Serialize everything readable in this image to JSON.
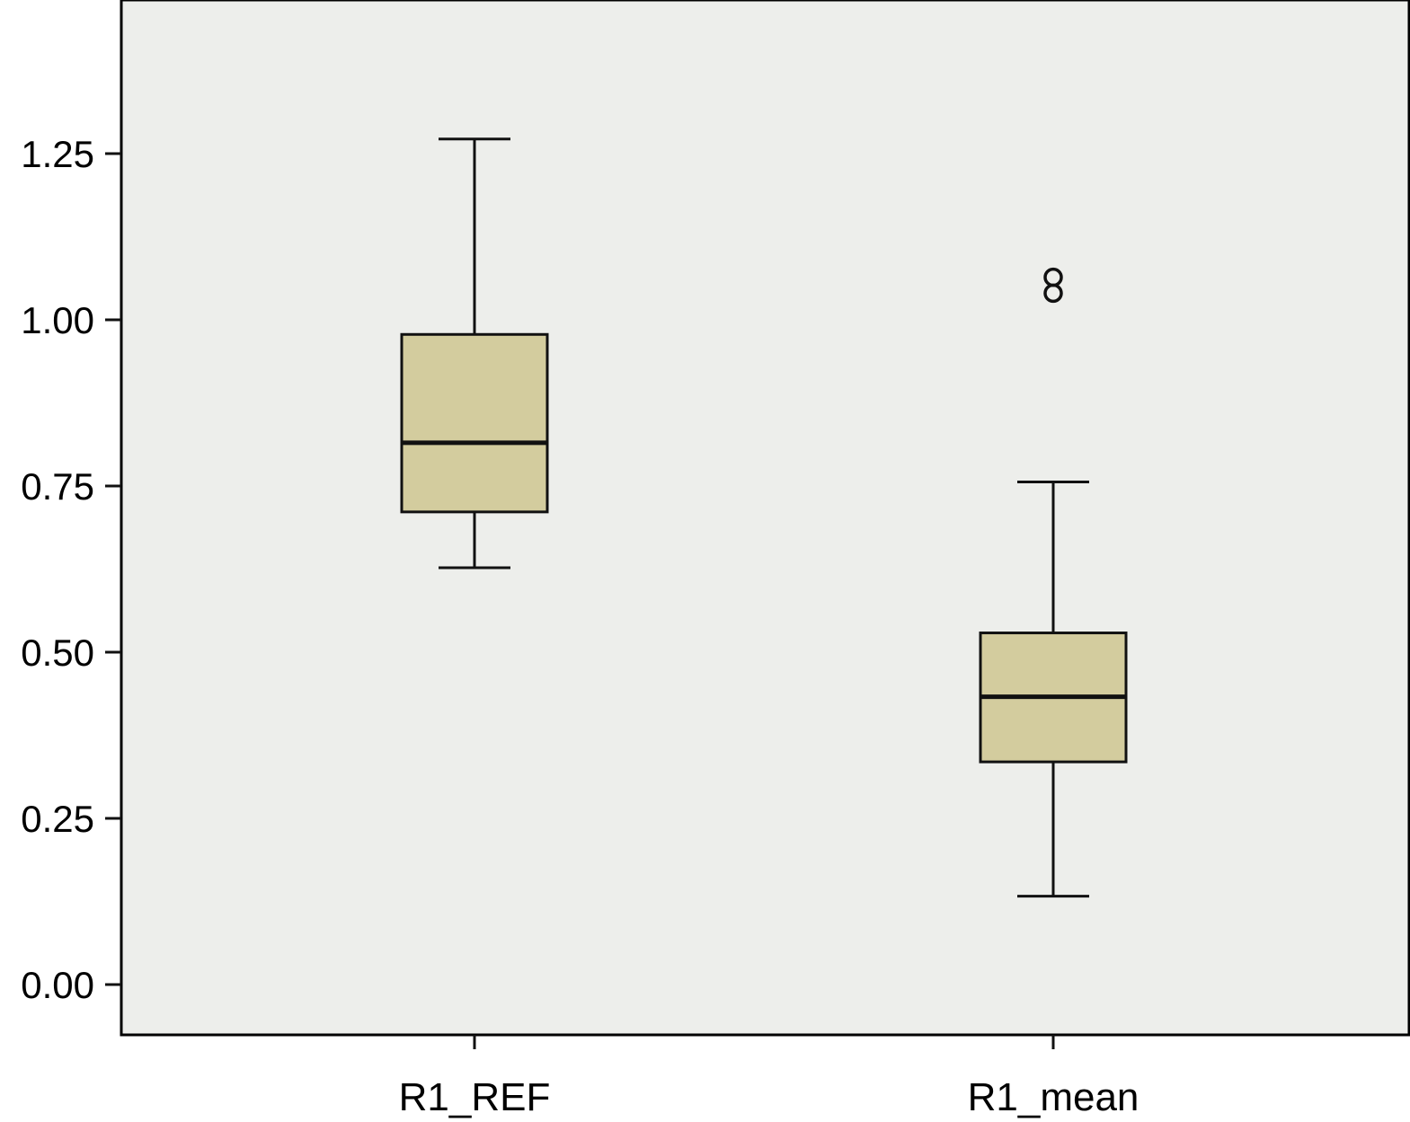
{
  "chart_data": {
    "type": "box",
    "title": "",
    "xlabel": "",
    "ylabel": "",
    "ylim": [
      -0.075,
      1.48
    ],
    "yticks": [
      0.0,
      0.25,
      0.5,
      0.75,
      1.0,
      1.25
    ],
    "ytick_labels": [
      "0.00",
      "0.25",
      "0.50",
      "0.75",
      "1.00",
      "1.25"
    ],
    "categories": [
      "R1_REF",
      "R1_mean"
    ],
    "boxes": [
      {
        "category": "R1_REF",
        "whisker_low": 0.627,
        "q1": 0.711,
        "median": 0.815,
        "q3": 0.978,
        "whisker_high": 1.272,
        "outliers": []
      },
      {
        "category": "R1_mean",
        "whisker_low": 0.133,
        "q1": 0.335,
        "median": 0.433,
        "q3": 0.529,
        "whisker_high": 0.756,
        "outliers": [
          1.064,
          1.04
        ]
      }
    ],
    "grid": false,
    "colors": {
      "plot_background": "#EDEEEB",
      "box_fill": "#D3CC9E",
      "line": "#111111"
    }
  }
}
